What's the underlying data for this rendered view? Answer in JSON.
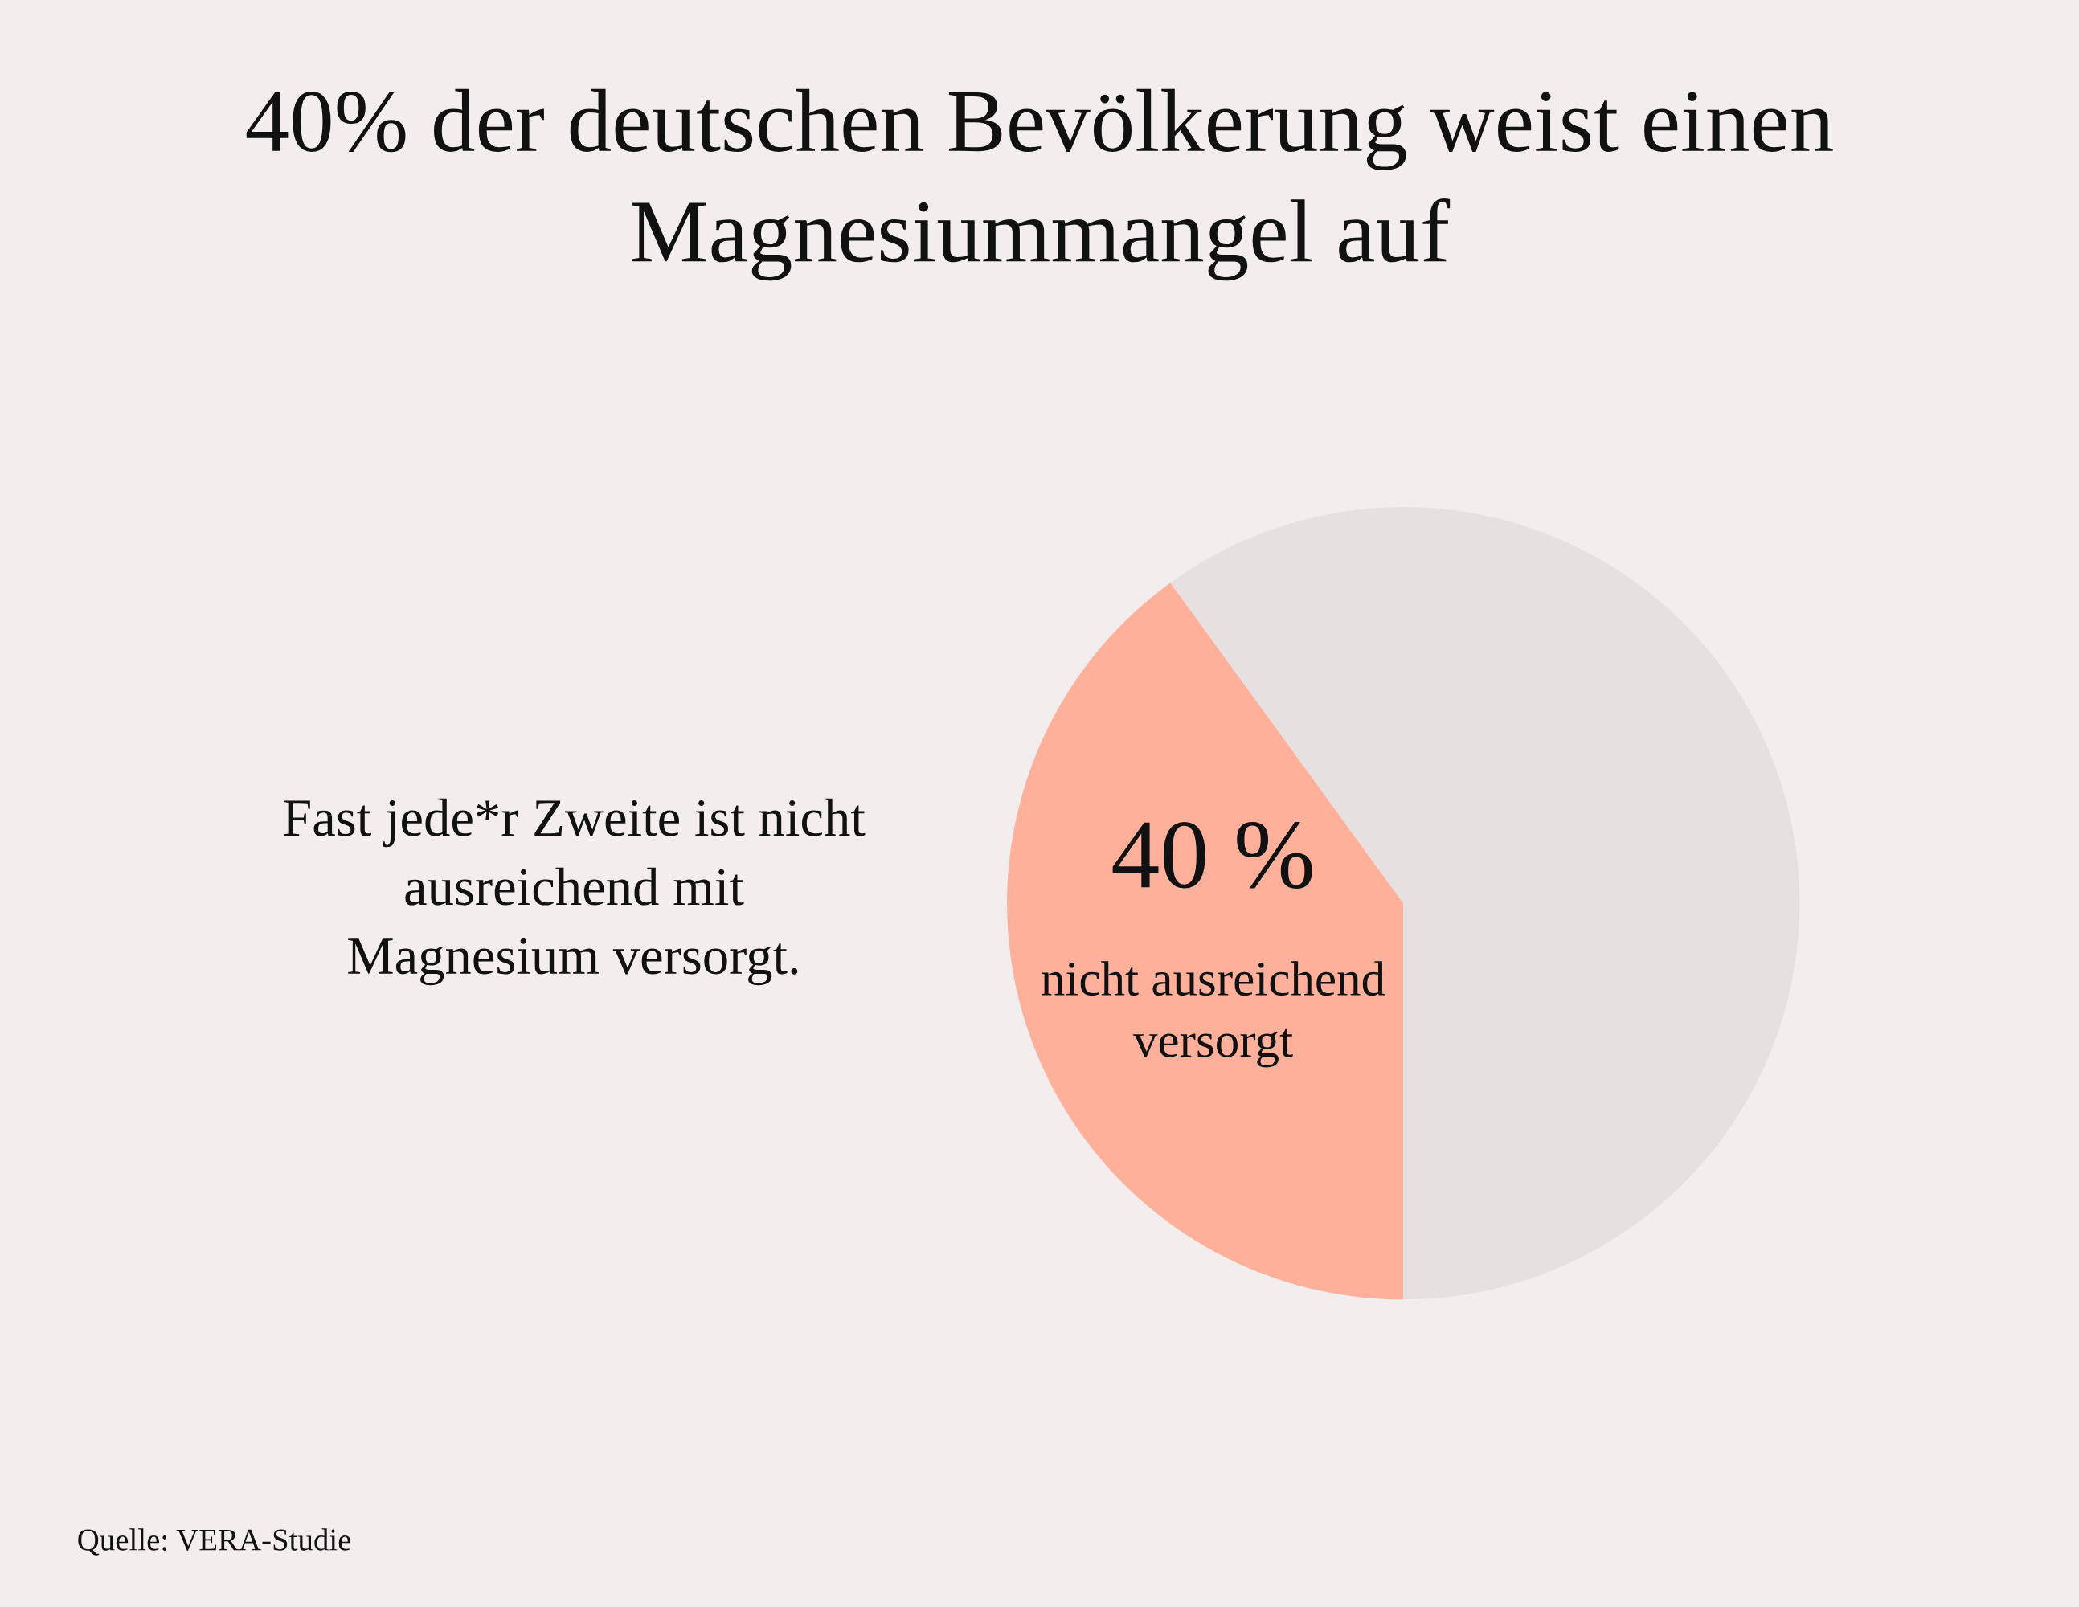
{
  "chart_data": {
    "type": "pie",
    "title": "40% der deutschen Bevölkerung weist einen\nMagnesiummangel auf",
    "categories": [
      "nicht ausreichend\nversorgt",
      null
    ],
    "values": [
      40,
      60
    ],
    "value_labels": [
      "40 %",
      null
    ],
    "colors": [
      "#ffb09a",
      "#e6e0e0"
    ],
    "annotations": [
      "Fast jede*r Zweite ist nicht\nausreichend mit\nMagnesium versorgt.",
      "Quelle: VERA-Studie"
    ],
    "legend": false
  }
}
